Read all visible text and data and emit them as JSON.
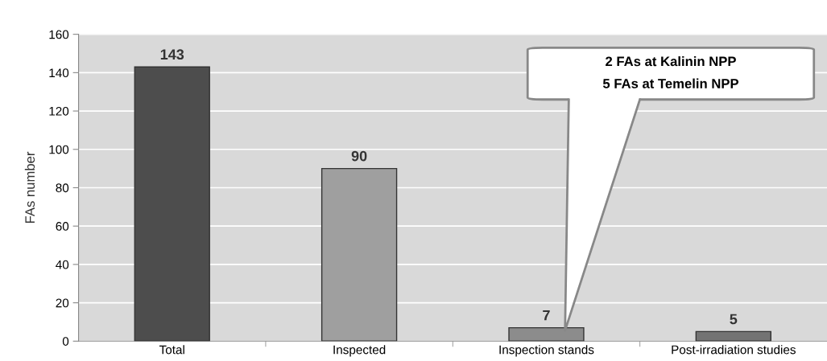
{
  "chart_data": {
    "type": "bar",
    "ylabel": "FAs number",
    "categories": [
      "Total",
      "Inspected",
      "Inspection stands",
      "Post-irradiation studies"
    ],
    "values": [
      143,
      90,
      7,
      5
    ],
    "colors": [
      "#4d4d4d",
      "#9f9f9f",
      "#8c8c8c",
      "#737373"
    ],
    "ylim": [
      0,
      160
    ],
    "yticks": [
      0,
      20,
      40,
      60,
      80,
      100,
      120,
      140,
      160
    ],
    "grid": "y",
    "data_labels": true,
    "annotations": [
      "2 FAs at Kalinin NPP\n5 FAs at Temelin NPP"
    ]
  }
}
